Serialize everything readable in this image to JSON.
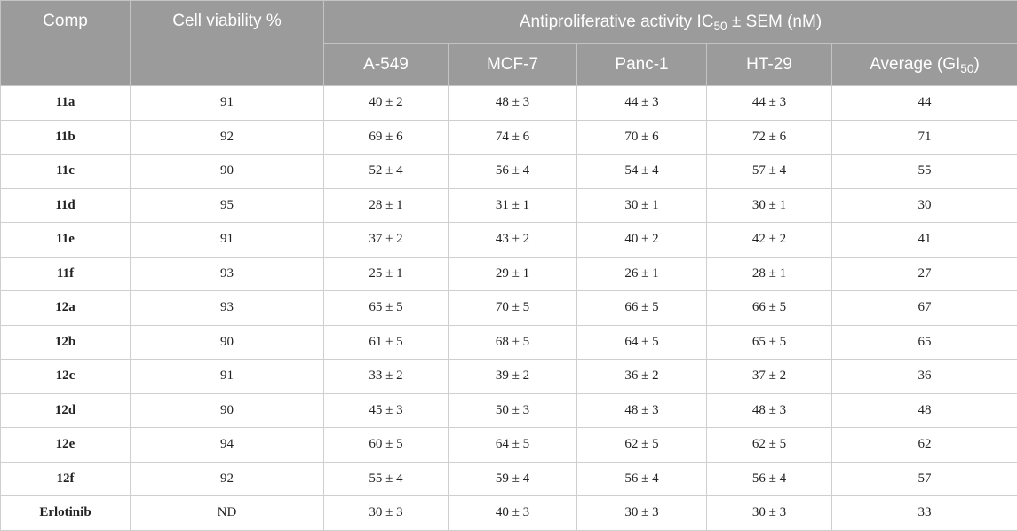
{
  "header": {
    "comp": "Comp",
    "viability": "Cell viability %",
    "group": {
      "prefix": "Antiproliferative activity IC",
      "sub": "50",
      "suffix": " ± SEM (nM)"
    },
    "cols": {
      "a549": "A-549",
      "mcf7": "MCF-7",
      "panc1": "Panc-1",
      "ht29": "HT-29",
      "avg_prefix": "Average (GI",
      "avg_sub": "50",
      "avg_suffix": ")"
    }
  },
  "rows": [
    {
      "comp": "11a",
      "viability": "91",
      "a549": "40 ± 2",
      "mcf7": "48 ± 3",
      "panc1": "44 ± 3",
      "ht29": "44 ± 3",
      "avg": "44"
    },
    {
      "comp": "11b",
      "viability": "92",
      "a549": "69 ± 6",
      "mcf7": "74 ± 6",
      "panc1": "70 ± 6",
      "ht29": "72 ± 6",
      "avg": "71"
    },
    {
      "comp": "11c",
      "viability": "90",
      "a549": "52 ± 4",
      "mcf7": "56 ± 4",
      "panc1": "54 ± 4",
      "ht29": "57 ± 4",
      "avg": "55"
    },
    {
      "comp": "11d",
      "viability": "95",
      "a549": "28 ± 1",
      "mcf7": "31 ± 1",
      "panc1": "30 ± 1",
      "ht29": "30 ± 1",
      "avg": "30"
    },
    {
      "comp": "11e",
      "viability": "91",
      "a549": "37 ± 2",
      "mcf7": "43 ± 2",
      "panc1": "40 ± 2",
      "ht29": "42 ± 2",
      "avg": "41"
    },
    {
      "comp": "11f",
      "viability": "93",
      "a549": "25 ± 1",
      "mcf7": "29 ± 1",
      "panc1": "26 ± 1",
      "ht29": "28 ± 1",
      "avg": "27"
    },
    {
      "comp": "12a",
      "viability": "93",
      "a549": "65 ± 5",
      "mcf7": "70 ± 5",
      "panc1": "66 ± 5",
      "ht29": "66 ± 5",
      "avg": "67"
    },
    {
      "comp": "12b",
      "viability": "90",
      "a549": "61 ± 5",
      "mcf7": "68 ± 5",
      "panc1": "64 ± 5",
      "ht29": "65 ± 5",
      "avg": "65"
    },
    {
      "comp": "12c",
      "viability": "91",
      "a549": "33 ± 2",
      "mcf7": "39 ± 2",
      "panc1": "36 ± 2",
      "ht29": "37 ± 2",
      "avg": "36"
    },
    {
      "comp": "12d",
      "viability": "90",
      "a549": "45 ± 3",
      "mcf7": "50 ± 3",
      "panc1": "48 ± 3",
      "ht29": "48 ± 3",
      "avg": "48"
    },
    {
      "comp": "12e",
      "viability": "94",
      "a549": "60 ± 5",
      "mcf7": "64 ± 5",
      "panc1": "62 ± 5",
      "ht29": "62 ± 5",
      "avg": "62"
    },
    {
      "comp": "12f",
      "viability": "92",
      "a549": "55 ± 4",
      "mcf7": "59 ± 4",
      "panc1": "56 ± 4",
      "ht29": "56 ± 4",
      "avg": "57"
    },
    {
      "comp": "Erlotinib",
      "viability": "ND",
      "a549": "30 ± 3",
      "mcf7": "40 ± 3",
      "panc1": "30 ± 3",
      "ht29": "30 ± 3",
      "avg": "33"
    }
  ]
}
